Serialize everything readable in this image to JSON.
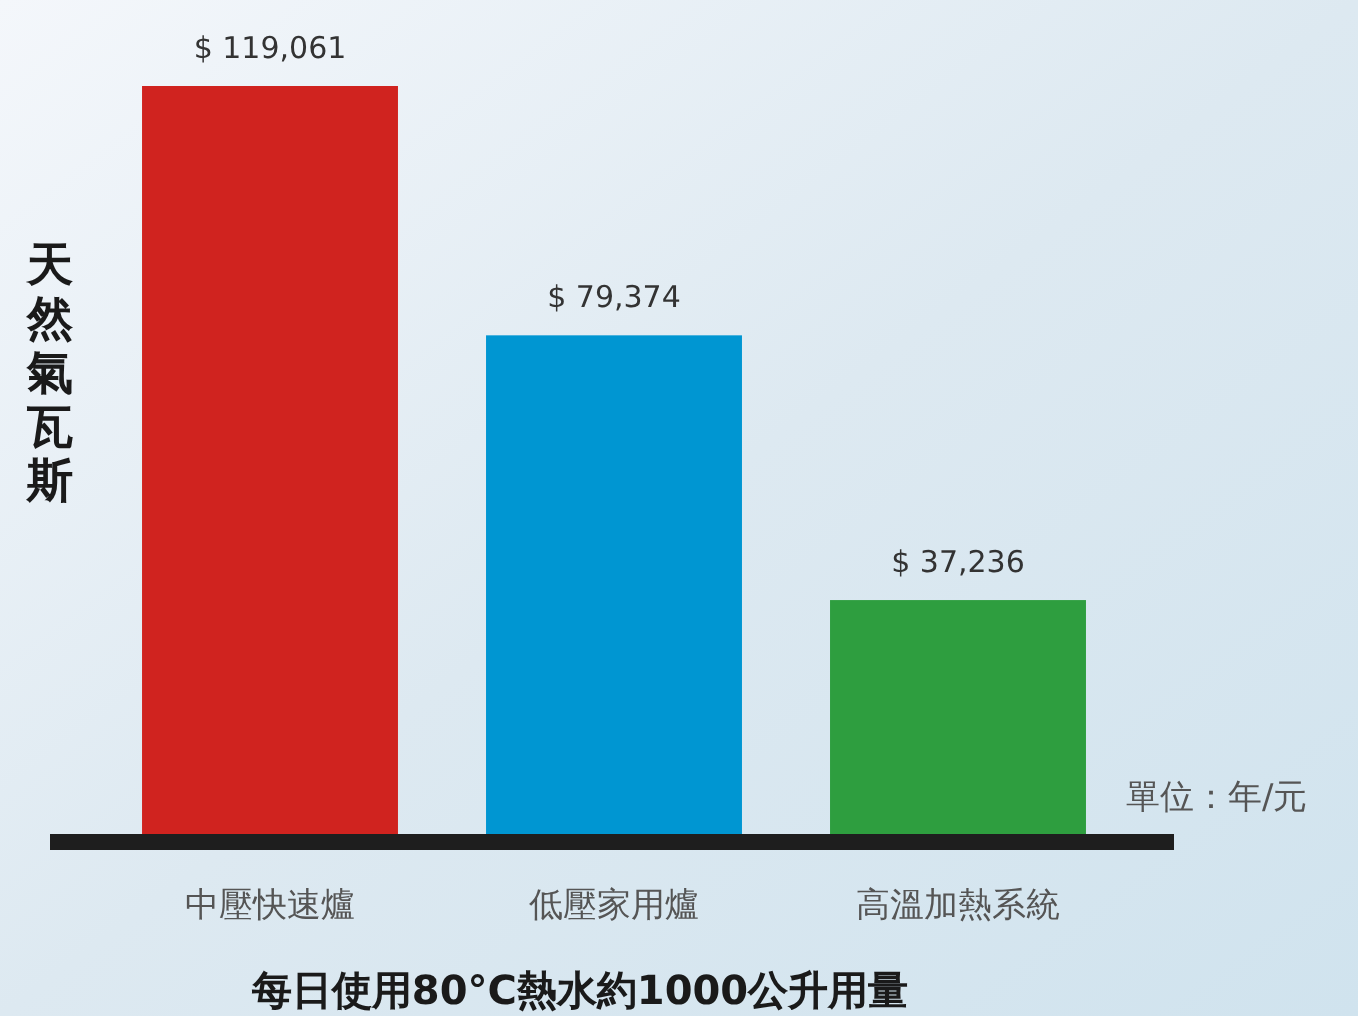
{
  "chart_data": {
    "type": "bar",
    "xlabel": "每日使用80°C熱水約1000公升用量",
    "ylabel": "天然氣瓦斯",
    "categories": [
      "中壓快速爐",
      "低壓家用爐",
      "高溫加熱系統"
    ],
    "values": [
      119061,
      79374,
      37236
    ],
    "colors": [
      "#d0231f",
      "#0096d2",
      "#2e9e3f"
    ],
    "value_labels": [
      "$ 119,061",
      "$ 79,374",
      "$ 37,236"
    ],
    "annotations": [
      "單位：年/元"
    ]
  }
}
